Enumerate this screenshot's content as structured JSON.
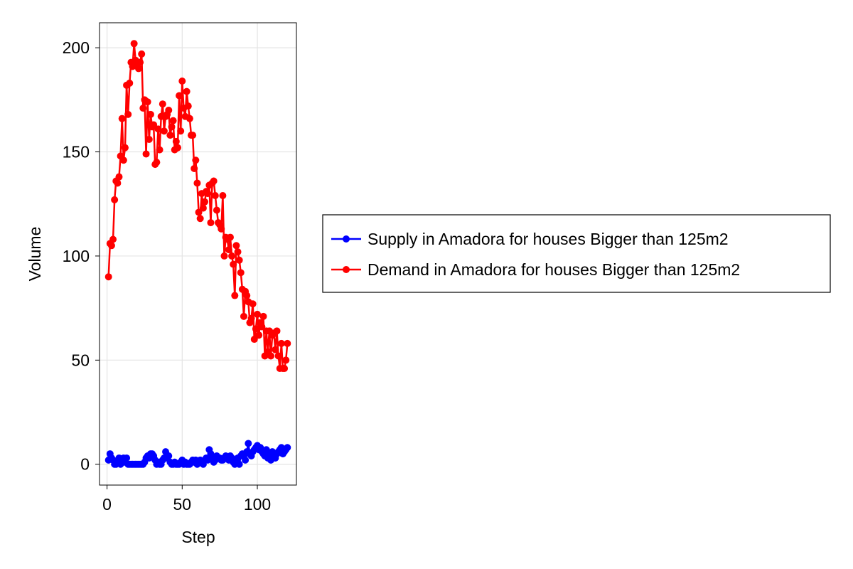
{
  "chart_data": {
    "type": "line",
    "xlabel": "Step",
    "ylabel": "Volume",
    "xlim": [
      -5,
      126
    ],
    "ylim": [
      -10,
      212
    ],
    "xticks": [
      0,
      50,
      100
    ],
    "yticks": [
      0,
      50,
      100,
      150,
      200
    ],
    "grid": true,
    "legend_position": "right",
    "series": [
      {
        "name": "Supply in Amadora for houses Bigger than 125m2",
        "color": "#0000ff",
        "marker": "circle",
        "x": [
          1,
          2,
          3,
          4,
          5,
          6,
          7,
          8,
          9,
          10,
          11,
          12,
          13,
          14,
          15,
          16,
          17,
          18,
          19,
          20,
          21,
          22,
          23,
          24,
          25,
          26,
          27,
          28,
          29,
          30,
          31,
          32,
          33,
          34,
          35,
          36,
          37,
          38,
          39,
          40,
          41,
          42,
          43,
          44,
          45,
          46,
          47,
          48,
          49,
          50,
          51,
          52,
          53,
          54,
          55,
          56,
          57,
          58,
          59,
          60,
          61,
          62,
          63,
          64,
          65,
          66,
          67,
          68,
          69,
          70,
          71,
          72,
          73,
          74,
          75,
          76,
          77,
          78,
          79,
          80,
          81,
          82,
          83,
          84,
          85,
          86,
          87,
          88,
          89,
          90,
          91,
          92,
          93,
          94,
          95,
          96,
          97,
          98,
          99,
          100,
          101,
          102,
          103,
          104,
          105,
          106,
          107,
          108,
          109,
          110,
          111,
          112,
          113,
          114,
          115,
          116,
          117,
          118,
          119,
          120
        ],
        "y": [
          2,
          5,
          3,
          2,
          0,
          0,
          1,
          3,
          0,
          2,
          3,
          1,
          3,
          0,
          0,
          0,
          0,
          0,
          0,
          0,
          0,
          0,
          0,
          0,
          1,
          3,
          4,
          3,
          5,
          5,
          4,
          2,
          0,
          1,
          0,
          0,
          2,
          3,
          6,
          3,
          4,
          1,
          0,
          0,
          1,
          0,
          0,
          0,
          1,
          2,
          0,
          1,
          0,
          0,
          0,
          1,
          2,
          1,
          2,
          0,
          1,
          2,
          1,
          0,
          2,
          3,
          2,
          7,
          5,
          3,
          1,
          2,
          4,
          3,
          3,
          2,
          2,
          3,
          4,
          3,
          2,
          4,
          3,
          1,
          0,
          1,
          3,
          0,
          4,
          5,
          4,
          2,
          6,
          10,
          5,
          4,
          6,
          7,
          8,
          9,
          7,
          8,
          6,
          5,
          4,
          7,
          3,
          5,
          2,
          6,
          4,
          3,
          5,
          6,
          7,
          8,
          5,
          6,
          7,
          8
        ]
      },
      {
        "name": "Demand in Amadora for houses Bigger than 125m2",
        "color": "#ff0000",
        "marker": "circle",
        "x": [
          1,
          2,
          3,
          4,
          5,
          6,
          7,
          8,
          9,
          10,
          11,
          12,
          13,
          14,
          15,
          16,
          17,
          18,
          19,
          20,
          21,
          22,
          23,
          24,
          25,
          26,
          27,
          28,
          29,
          30,
          31,
          32,
          33,
          34,
          35,
          36,
          37,
          38,
          39,
          40,
          41,
          42,
          43,
          44,
          45,
          46,
          47,
          48,
          49,
          50,
          51,
          52,
          53,
          54,
          55,
          56,
          57,
          58,
          59,
          60,
          61,
          62,
          63,
          64,
          65,
          66,
          67,
          68,
          69,
          70,
          71,
          72,
          73,
          74,
          75,
          76,
          77,
          78,
          79,
          80,
          81,
          82,
          83,
          84,
          85,
          86,
          87,
          88,
          89,
          90,
          91,
          92,
          93,
          94,
          95,
          96,
          97,
          98,
          99,
          100,
          101,
          102,
          103,
          104,
          105,
          106,
          107,
          108,
          109,
          110,
          111,
          112,
          113,
          114,
          115,
          116,
          117,
          118,
          119,
          120
        ],
        "y": [
          90,
          106,
          105,
          108,
          127,
          136,
          135,
          138,
          148,
          166,
          146,
          152,
          182,
          168,
          183,
          193,
          191,
          202,
          194,
          192,
          190,
          193,
          197,
          171,
          175,
          149,
          174,
          156,
          168,
          162,
          163,
          144,
          145,
          161,
          151,
          167,
          173,
          160,
          167,
          168,
          170,
          158,
          162,
          165,
          151,
          155,
          152,
          177,
          160,
          184,
          171,
          167,
          179,
          172,
          166,
          158,
          158,
          142,
          146,
          135,
          121,
          118,
          130,
          123,
          126,
          131,
          130,
          134,
          116,
          135,
          136,
          129,
          122,
          116,
          115,
          113,
          129,
          100,
          109,
          108,
          103,
          109,
          100,
          96,
          81,
          105,
          102,
          98,
          92,
          84,
          71,
          83,
          81,
          78,
          68,
          70,
          77,
          60,
          65,
          72,
          62,
          68,
          66,
          71,
          52,
          64,
          54,
          64,
          52,
          62,
          63,
          55,
          64,
          52,
          46,
          58,
          46,
          46,
          50,
          58
        ]
      }
    ]
  }
}
